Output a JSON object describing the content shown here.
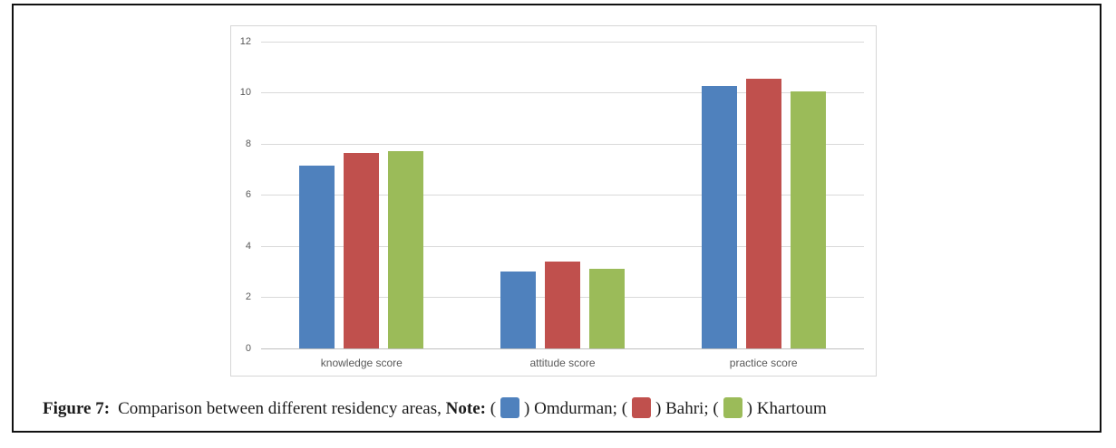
{
  "figure_caption": {
    "label": "Figure 7:",
    "text": "Comparison between different residency areas,",
    "note_label": "Note:",
    "paren_open": "(",
    "paren_close": ")",
    "legend": [
      {
        "name": "Omdurman",
        "sep": ";",
        "color": "#4F81BD"
      },
      {
        "name": "Bahri",
        "sep": ";",
        "color": "#C0504D"
      },
      {
        "name": "Khartoum",
        "sep": "",
        "color": "#9BBB59"
      }
    ]
  },
  "chart_data": {
    "type": "bar",
    "categories": [
      "knowledge score",
      "attitude score",
      "practice score"
    ],
    "series": [
      {
        "name": "Omdurman",
        "color": "#4F81BD",
        "values": [
          7.15,
          3.0,
          10.25
        ]
      },
      {
        "name": "Bahri",
        "color": "#C0504D",
        "values": [
          7.65,
          3.4,
          10.55
        ]
      },
      {
        "name": "Khartoum",
        "color": "#9BBB59",
        "values": [
          7.7,
          3.1,
          10.05
        ]
      }
    ],
    "title": "",
    "xlabel": "",
    "ylabel": "",
    "ylim": [
      0,
      12
    ],
    "yticks": [
      0,
      2,
      4,
      6,
      8,
      10,
      12
    ],
    "grid": true,
    "legend_position": "in-caption",
    "gridline_color": "#d9d9d9",
    "axis_color": "#bfbfbf",
    "tick_label_color": "#595959"
  }
}
